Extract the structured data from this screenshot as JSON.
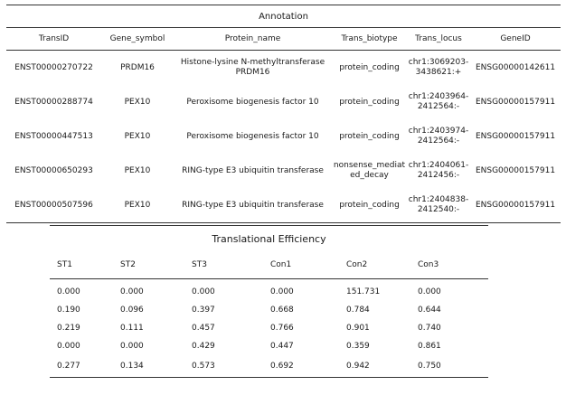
{
  "annotation": {
    "title": "Annotation",
    "headers": [
      "TransID",
      "Gene_symbol",
      "Protein_name",
      "Trans_biotype",
      "Trans_locus",
      "GeneID"
    ],
    "rows": [
      [
        "ENST00000270722",
        "PRDM16",
        "Histone-lysine N-methyltransferase PRDM16",
        "protein_coding",
        "chr1:3069203-3438621:+",
        "ENSG00000142611"
      ],
      [
        "ENST00000288774",
        "PEX10",
        "Peroxisome biogenesis factor 10",
        "protein_coding",
        "chr1:2403964-2412564:-",
        "ENSG00000157911"
      ],
      [
        "ENST00000447513",
        "PEX10",
        "Peroxisome biogenesis factor 10",
        "protein_coding",
        "chr1:2403974-2412564:-",
        "ENSG00000157911"
      ],
      [
        "ENST00000650293",
        "PEX10",
        "RING-type E3 ubiquitin transferase",
        "nonsense_mediated_decay",
        "chr1:2404061-2412456:-",
        "ENSG00000157911"
      ],
      [
        "ENST00000507596",
        "PEX10",
        "RING-type E3 ubiquitin transferase",
        "protein_coding",
        "chr1:2404838-2412540:-",
        "ENSG00000157911"
      ]
    ]
  },
  "translational_efficiency": {
    "title": "Translational Efficiency",
    "headers": [
      "ST1",
      "ST2",
      "ST3",
      "Con1",
      "Con2",
      "Con3"
    ],
    "rows": [
      [
        "0.000",
        "0.000",
        "0.000",
        "0.000",
        "151.731",
        "0.000"
      ],
      [
        "0.190",
        "0.096",
        "0.397",
        "0.668",
        "0.784",
        "0.644"
      ],
      [
        "0.219",
        "0.111",
        "0.457",
        "0.766",
        "0.901",
        "0.740"
      ],
      [
        "0.000",
        "0.000",
        "0.429",
        "0.447",
        "0.359",
        "0.861"
      ],
      [
        "0.277",
        "0.134",
        "0.573",
        "0.692",
        "0.942",
        "0.750"
      ]
    ]
  }
}
